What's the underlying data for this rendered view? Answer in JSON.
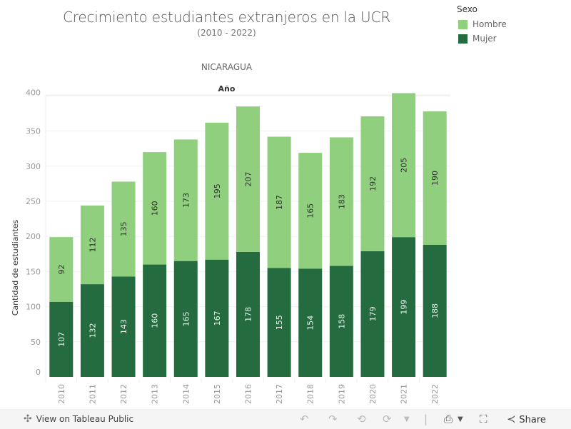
{
  "header": {
    "title": "Crecimiento estudiantes extranjeros en la UCR",
    "subtitle": "(2010 - 2022)",
    "country": "NICARAGUA"
  },
  "legend": {
    "title": "Sexo",
    "items": [
      {
        "label": "Hombre",
        "color": "#8fcf7e"
      },
      {
        "label": "Mujer",
        "color": "#246b40"
      }
    ]
  },
  "chart_data": {
    "type": "bar",
    "stacked": true,
    "title": "Crecimiento estudiantes extranjeros en la UCR",
    "subtitle": "(2010 - 2022)",
    "panel_label": "NICARAGUA",
    "xlabel": "Año",
    "ylabel": "Cantidad de estudiantes",
    "categories": [
      "2010",
      "2011",
      "2012",
      "2013",
      "2014",
      "2015",
      "2016",
      "2017",
      "2018",
      "2019",
      "2020",
      "2021",
      "2022"
    ],
    "series": [
      {
        "name": "Mujer",
        "color": "#246b40",
        "values": [
          107,
          132,
          143,
          160,
          165,
          167,
          178,
          155,
          154,
          158,
          179,
          199,
          188
        ]
      },
      {
        "name": "Hombre",
        "color": "#8fcf7e",
        "values": [
          92,
          112,
          135,
          160,
          173,
          195,
          207,
          187,
          165,
          183,
          192,
          205,
          190
        ]
      }
    ],
    "yticks": [
      0,
      50,
      100,
      150,
      200,
      250,
      300,
      350,
      400
    ],
    "ylim": [
      0,
      410
    ],
    "grid": true,
    "legend_position": "top-right"
  },
  "footer": {
    "view_label": "View on Tableau Public",
    "share_label": "Share"
  }
}
